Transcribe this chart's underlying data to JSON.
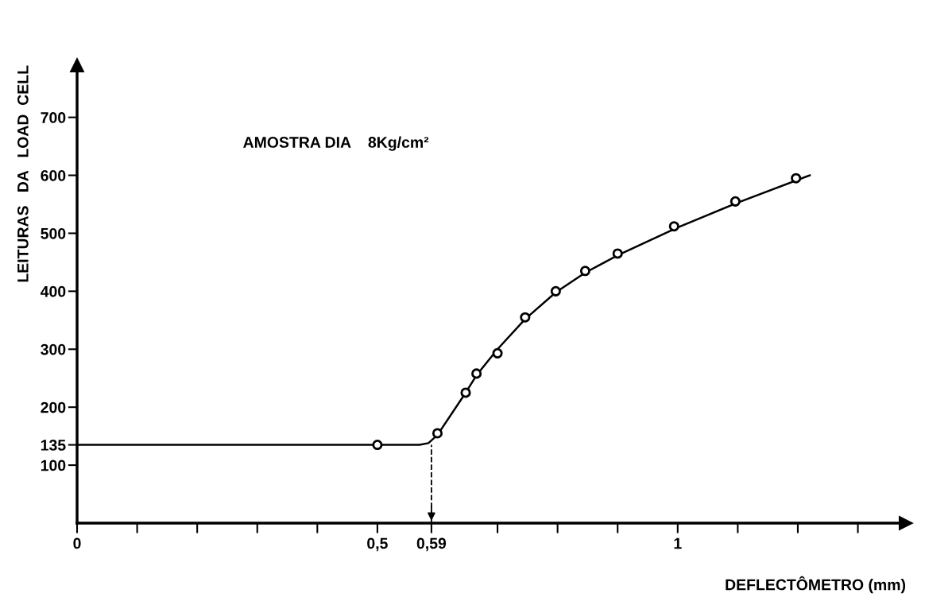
{
  "chart_data": {
    "type": "scatter",
    "title": "AMOSTRA DIA    8Kg/cm²",
    "xlabel": "DEFLECTÔMETRO (mm)",
    "ylabel": "LEITURAS   DA   LOAD  CELL",
    "xlim": [
      0,
      1.38
    ],
    "ylim": [
      0,
      790
    ],
    "xticks": [
      {
        "value": 0,
        "label": "0"
      },
      {
        "value": 0.1,
        "label": null
      },
      {
        "value": 0.2,
        "label": null
      },
      {
        "value": 0.3,
        "label": null
      },
      {
        "value": 0.4,
        "label": null
      },
      {
        "value": 0.5,
        "label": "0,5"
      },
      {
        "value": 0.59,
        "label": "0,59"
      },
      {
        "value": 0.7,
        "label": null
      },
      {
        "value": 0.8,
        "label": null
      },
      {
        "value": 0.9,
        "label": null
      },
      {
        "value": 1,
        "label": "1"
      },
      {
        "value": 1.1,
        "label": null
      },
      {
        "value": 1.2,
        "label": null
      },
      {
        "value": 1.3,
        "label": null
      }
    ],
    "yticks": [
      100,
      135,
      200,
      300,
      400,
      500,
      600,
      700
    ],
    "grid": false,
    "legend": false,
    "marker": "circle",
    "ref_lines": [
      {
        "axis": "x",
        "value": 0.59,
        "label": null,
        "line_style": "dashed",
        "color": "#000000"
      }
    ],
    "series": [
      {
        "type": "line",
        "color": "#000000",
        "line_style": "solid",
        "marker": "none",
        "x": [
          0,
          0.5,
          0.57,
          0.585,
          0.6,
          0.647,
          0.665,
          0.7,
          0.746,
          0.797,
          0.846,
          0.9,
          1.0,
          1.1,
          1.22
        ],
        "values": [
          135,
          135,
          135,
          138,
          152,
          225,
          255,
          300,
          352,
          398,
          432,
          462,
          510,
          553,
          600
        ]
      },
      {
        "type": "scatter",
        "color": "#000000",
        "x": [
          0.5,
          0.6,
          0.647,
          0.665,
          0.7,
          0.746,
          0.797,
          0.846,
          0.9,
          0.994,
          1.096,
          1.197
        ],
        "values": [
          135,
          155,
          225,
          258,
          293,
          355,
          400,
          435,
          465,
          512,
          555,
          595
        ]
      }
    ]
  }
}
